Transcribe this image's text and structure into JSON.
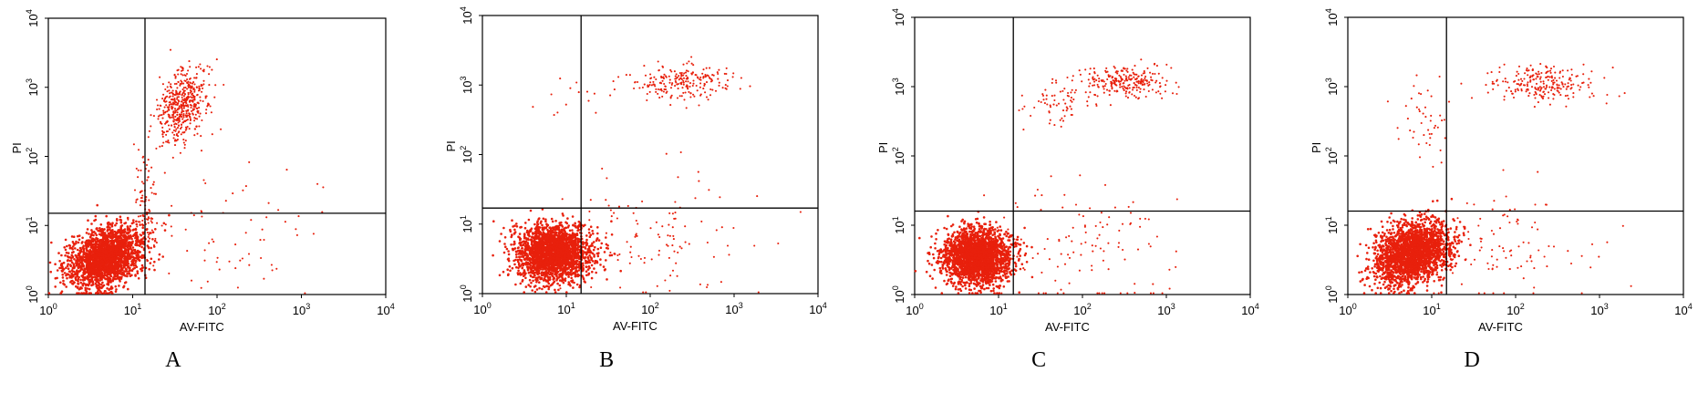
{
  "figure": {
    "colors": {
      "points": "#e8200c",
      "frame": "#000000",
      "gate": "#000000"
    }
  },
  "chart_data": [
    {
      "type": "scatter",
      "panel_label": "A",
      "xlabel": "AV-FITC",
      "ylabel": "PI",
      "xscale": "log",
      "yscale": "log",
      "xlim": [
        1,
        10000
      ],
      "ylim": [
        1,
        10000
      ],
      "x_tick_labels": [
        "10",
        "10",
        "10",
        "10",
        "10"
      ],
      "x_tick_exponents": [
        "0",
        "1",
        "2",
        "3",
        "4"
      ],
      "y_tick_labels": [
        "10",
        "10",
        "10",
        "10",
        "10"
      ],
      "y_tick_exponents": [
        "0",
        "1",
        "2",
        "3",
        "4"
      ],
      "gate": {
        "x": 14,
        "y": 15
      },
      "clusters": [
        {
          "cx": 4.8,
          "cy": 3.5,
          "sx": 0.22,
          "sy": 0.21,
          "n": 2100,
          "tilt": 0.35
        },
        {
          "cx": 40,
          "cy": 550,
          "sx": 0.16,
          "sy": 0.25,
          "n": 500,
          "tilt": 0.5
        },
        {
          "cx": 14,
          "cy": 25,
          "sx": 0.08,
          "sy": 0.35,
          "n": 90,
          "tilt": 0
        },
        {
          "cx": 150,
          "cy": 8,
          "sx": 0.7,
          "sy": 0.5,
          "n": 70,
          "tilt": 0
        }
      ]
    },
    {
      "type": "scatter",
      "panel_label": "B",
      "xlabel": "AV-FITC",
      "ylabel": "PI",
      "xscale": "log",
      "yscale": "log",
      "xlim": [
        1,
        10000
      ],
      "ylim": [
        1,
        10000
      ],
      "x_tick_labels": [
        "10",
        "10",
        "10",
        "10",
        "10"
      ],
      "x_tick_exponents": [
        "0",
        "1",
        "2",
        "3",
        "4"
      ],
      "y_tick_labels": [
        "10",
        "10",
        "10",
        "10",
        "10"
      ],
      "y_tick_exponents": [
        "0",
        "1",
        "2",
        "3",
        "4"
      ],
      "gate": {
        "x": 15,
        "y": 17
      },
      "clusters": [
        {
          "cx": 7,
          "cy": 3.8,
          "sx": 0.22,
          "sy": 0.2,
          "n": 2400,
          "tilt": 0
        },
        {
          "cx": 230,
          "cy": 1100,
          "sx": 0.3,
          "sy": 0.12,
          "n": 220,
          "tilt": 0
        },
        {
          "cx": 150,
          "cy": 6,
          "sx": 0.6,
          "sy": 0.45,
          "n": 110,
          "tilt": 0
        },
        {
          "cx": 10,
          "cy": 800,
          "sx": 0.2,
          "sy": 0.2,
          "n": 14,
          "tilt": 0
        }
      ]
    },
    {
      "type": "scatter",
      "panel_label": "C",
      "xlabel": "AV-FITC",
      "ylabel": "PI",
      "xscale": "log",
      "yscale": "log",
      "xlim": [
        1,
        10000
      ],
      "ylim": [
        1,
        10000
      ],
      "x_tick_labels": [
        "10",
        "10",
        "10",
        "10",
        "10"
      ],
      "x_tick_exponents": [
        "0",
        "1",
        "2",
        "3",
        "4"
      ],
      "y_tick_labels": [
        "10",
        "10",
        "10",
        "10",
        "10"
      ],
      "y_tick_exponents": [
        "0",
        "1",
        "2",
        "3",
        "4"
      ],
      "gate": {
        "x": 15,
        "y": 16
      },
      "clusters": [
        {
          "cx": 5.5,
          "cy": 3.5,
          "sx": 0.2,
          "sy": 0.2,
          "n": 2400,
          "tilt": 0
        },
        {
          "cx": 300,
          "cy": 1150,
          "sx": 0.28,
          "sy": 0.12,
          "n": 260,
          "tilt": 0
        },
        {
          "cx": 45,
          "cy": 550,
          "sx": 0.2,
          "sy": 0.15,
          "n": 60,
          "tilt": 0
        },
        {
          "cx": 100,
          "cy": 5,
          "sx": 0.6,
          "sy": 0.45,
          "n": 120,
          "tilt": 0
        }
      ]
    },
    {
      "type": "scatter",
      "panel_label": "D",
      "xlabel": "AV-FITC",
      "ylabel": "PI",
      "xscale": "log",
      "yscale": "log",
      "xlim": [
        1,
        10000
      ],
      "ylim": [
        1,
        10000
      ],
      "x_tick_labels": [
        "10",
        "10",
        "10",
        "10",
        "10"
      ],
      "x_tick_exponents": [
        "0",
        "1",
        "2",
        "3",
        "4"
      ],
      "y_tick_labels": [
        "10",
        "10",
        "10",
        "10",
        "10"
      ],
      "y_tick_exponents": [
        "0",
        "1",
        "2",
        "3",
        "4"
      ],
      "gate": {
        "x": 15,
        "y": 16
      },
      "clusters": [
        {
          "cx": 6,
          "cy": 4,
          "sx": 0.22,
          "sy": 0.21,
          "n": 2300,
          "tilt": 0.25
        },
        {
          "cx": 220,
          "cy": 1100,
          "sx": 0.3,
          "sy": 0.13,
          "n": 230,
          "tilt": 0
        },
        {
          "cx": 9,
          "cy": 300,
          "sx": 0.18,
          "sy": 0.35,
          "n": 45,
          "tilt": 0
        },
        {
          "cx": 80,
          "cy": 5,
          "sx": 0.6,
          "sy": 0.45,
          "n": 110,
          "tilt": 0
        }
      ]
    }
  ]
}
